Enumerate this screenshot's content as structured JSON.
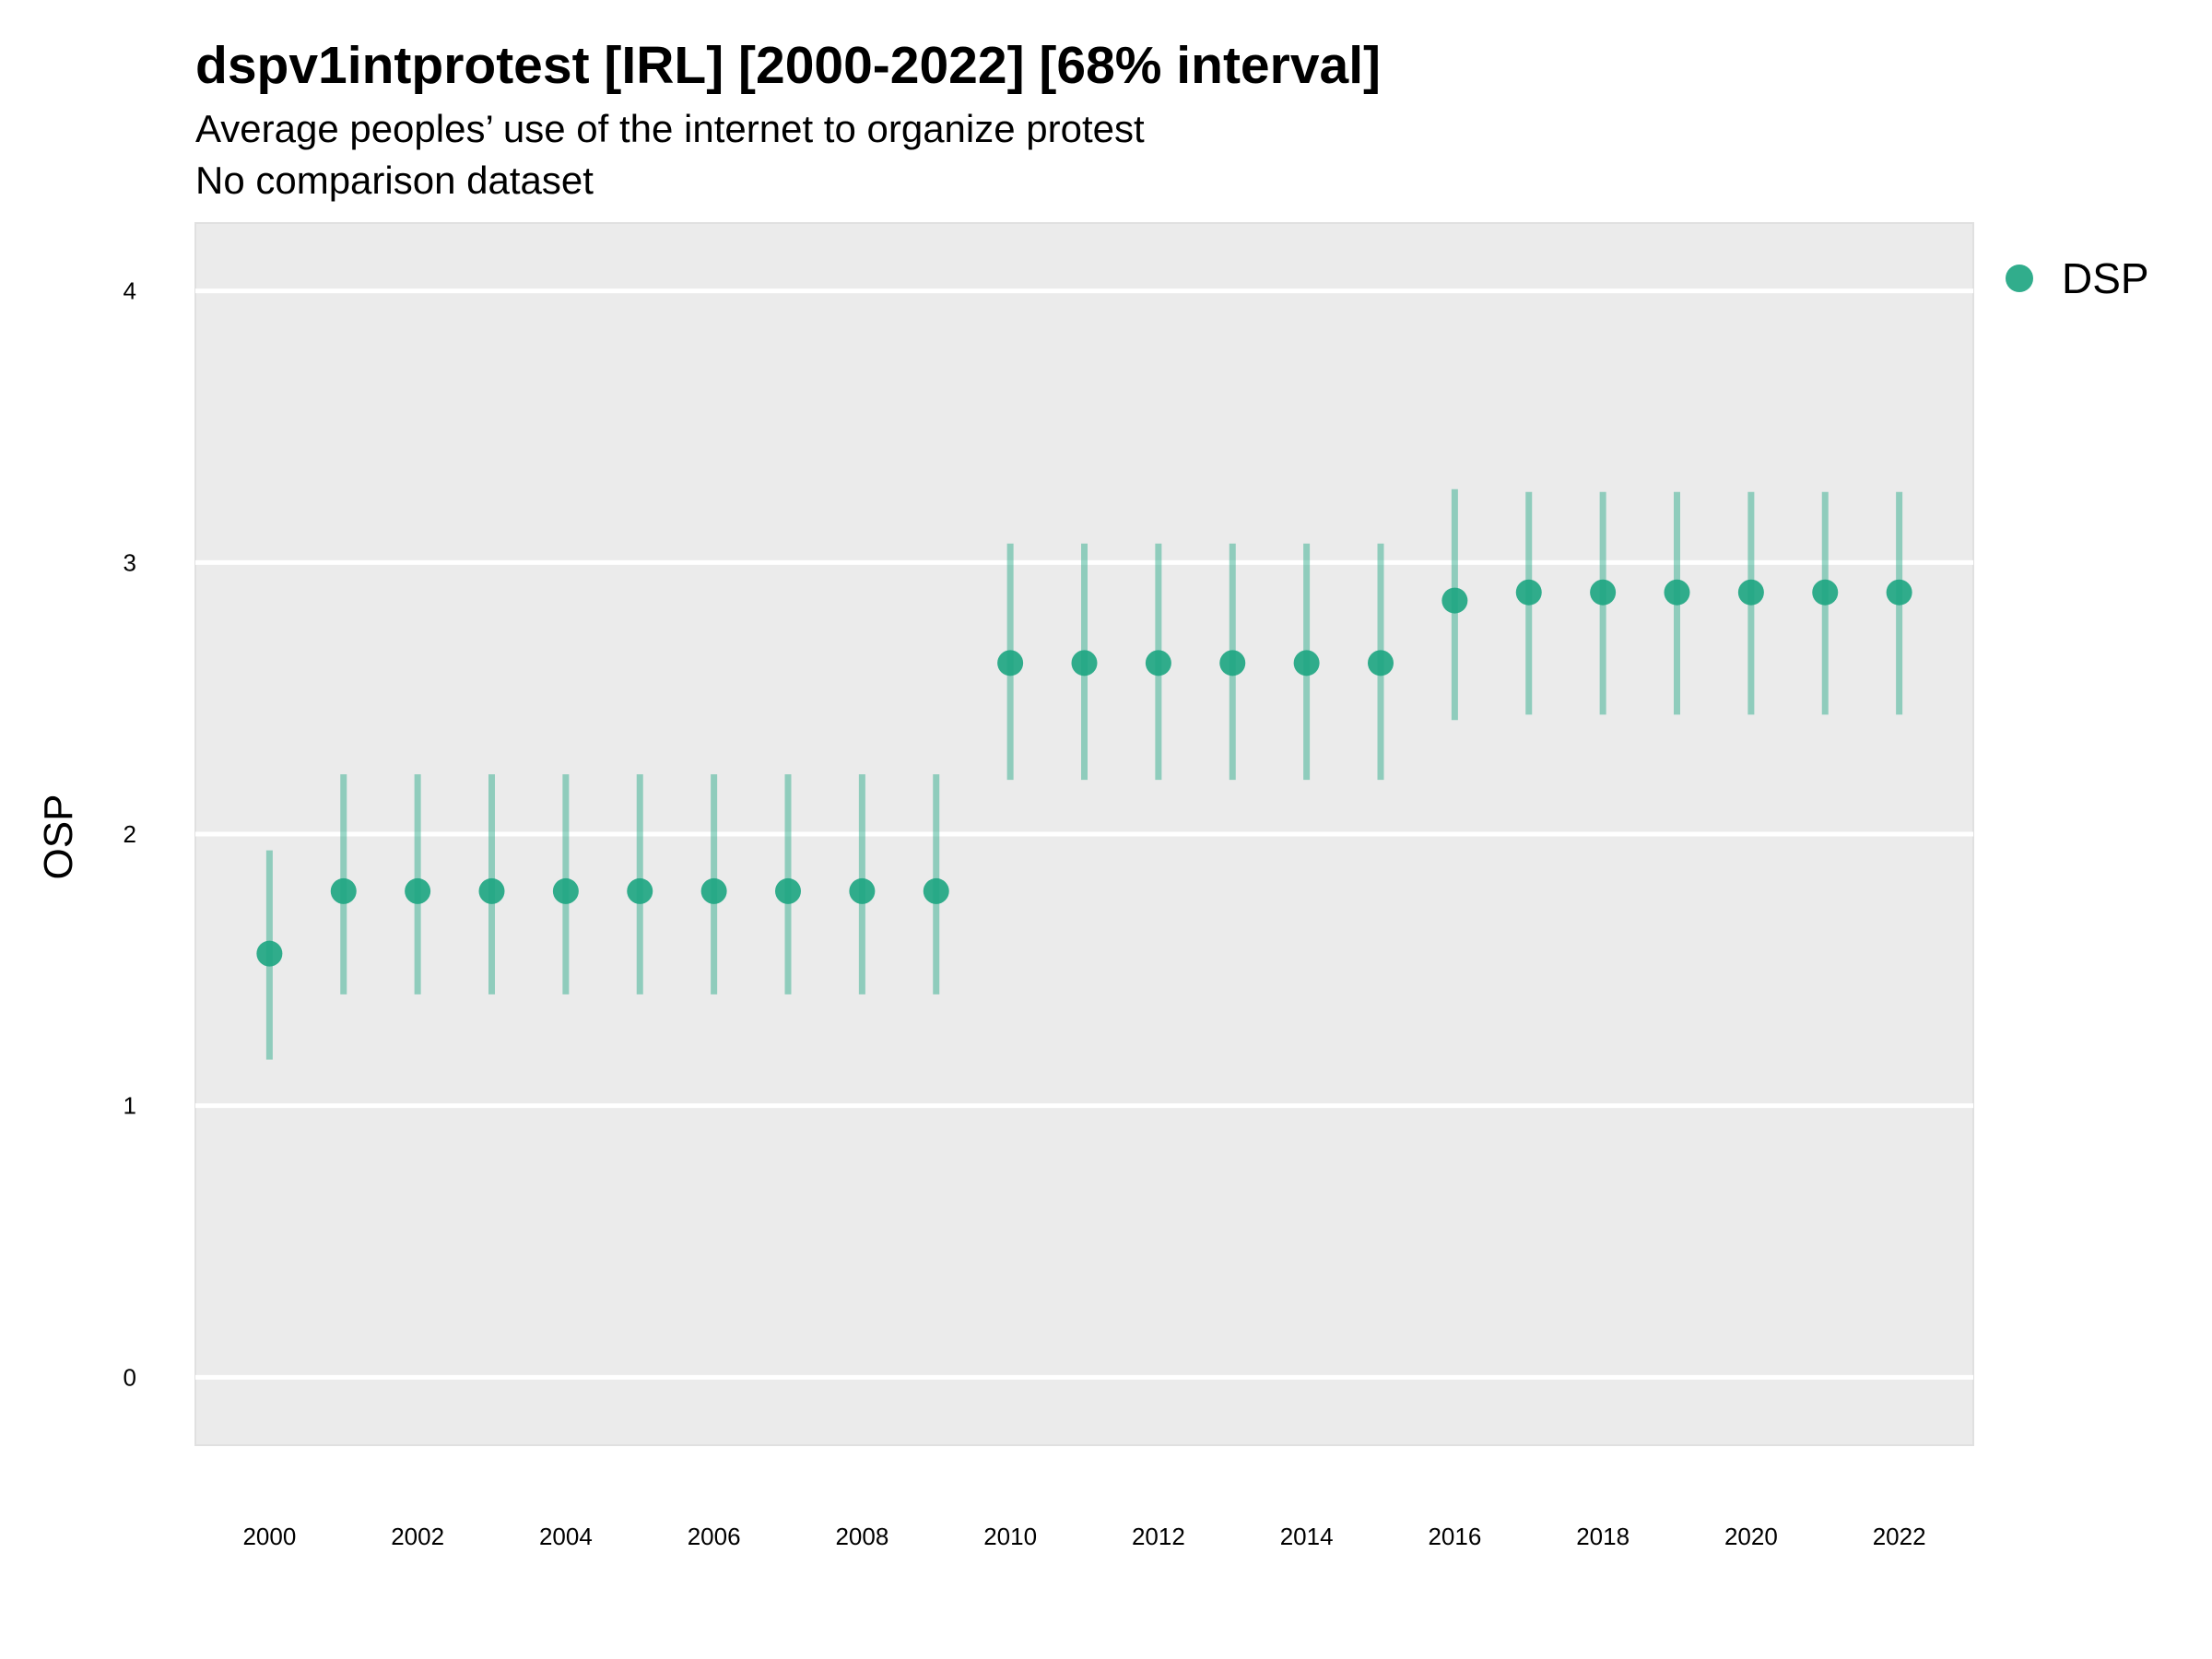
{
  "chart_data": {
    "type": "scatter",
    "title": "dspv1intprotest [IRL] [2000-2022] [68% interval]",
    "subtitle": "Average peoples’ use of the internet to organize protest",
    "caption": "No comparison dataset",
    "xlabel": "",
    "ylabel": "OSP",
    "x_ticks": [
      "2000",
      "2002",
      "2004",
      "2006",
      "2008",
      "2010",
      "2012",
      "2014",
      "2016",
      "2018",
      "2020",
      "2022"
    ],
    "y_ticks": [
      "0",
      "1",
      "2",
      "3",
      "4"
    ],
    "xlim": [
      1999.0,
      2023.0
    ],
    "ylim": [
      -0.25,
      4.25
    ],
    "grid": true,
    "legend_position": "right",
    "colors": {
      "series": "#1fa682",
      "panel": "#ebebeb",
      "grid": "#ffffff"
    },
    "series": [
      {
        "name": "DSP",
        "x": [
          2000,
          2001,
          2002,
          2003,
          2004,
          2005,
          2006,
          2007,
          2008,
          2009,
          2010,
          2011,
          2012,
          2013,
          2014,
          2015,
          2016,
          2017,
          2018,
          2019,
          2020,
          2021,
          2022
        ],
        "y": [
          1.56,
          1.79,
          1.79,
          1.79,
          1.79,
          1.79,
          1.79,
          1.79,
          1.79,
          1.79,
          2.63,
          2.63,
          2.63,
          2.63,
          2.63,
          2.63,
          2.86,
          2.89,
          2.89,
          2.89,
          2.89,
          2.89,
          2.89
        ],
        "lower": [
          1.17,
          1.41,
          1.41,
          1.41,
          1.41,
          1.41,
          1.41,
          1.41,
          1.41,
          1.41,
          2.2,
          2.2,
          2.2,
          2.2,
          2.2,
          2.2,
          2.42,
          2.44,
          2.44,
          2.44,
          2.44,
          2.44,
          2.44
        ],
        "upper": [
          1.94,
          2.22,
          2.22,
          2.22,
          2.22,
          2.22,
          2.22,
          2.22,
          2.22,
          2.22,
          3.07,
          3.07,
          3.07,
          3.07,
          3.07,
          3.07,
          3.27,
          3.26,
          3.26,
          3.26,
          3.26,
          3.26,
          3.26
        ]
      }
    ]
  }
}
